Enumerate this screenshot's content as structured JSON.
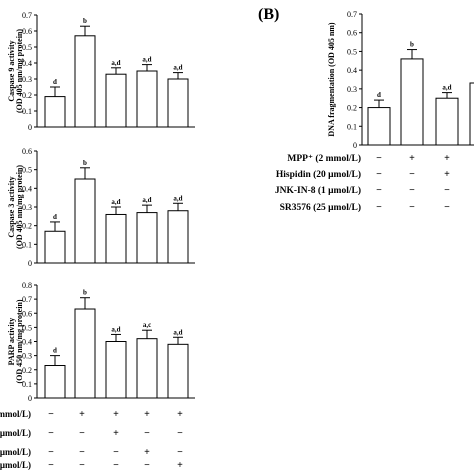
{
  "panel_b_label": "(B)",
  "chart_data": [
    {
      "type": "bar",
      "ylabel": [
        "Caspase 9 activity",
        "(OD 405 nm/mg protein)"
      ],
      "ylim": [
        0,
        0.7
      ],
      "yticks": [
        "0",
        "0.1",
        "0.2",
        "0.3",
        "0.4",
        "0.5",
        "0.6",
        "0.7"
      ],
      "values": [
        0.19,
        0.57,
        0.33,
        0.35,
        0.3
      ],
      "errors": [
        0.06,
        0.06,
        0.04,
        0.04,
        0.04
      ],
      "labels": [
        "d",
        "b",
        "a,d",
        "a,d",
        "a,d"
      ]
    },
    {
      "type": "bar",
      "ylabel": [
        "Caspase 3 activity",
        "(OD 405 nm/mg protein)"
      ],
      "ylim": [
        0,
        0.6
      ],
      "yticks": [
        "0",
        "0.1",
        "0.2",
        "0.3",
        "0.4",
        "0.5",
        "0.6"
      ],
      "values": [
        0.17,
        0.45,
        0.26,
        0.27,
        0.28
      ],
      "errors": [
        0.05,
        0.06,
        0.04,
        0.04,
        0.04
      ],
      "labels": [
        "d",
        "b",
        "a,d",
        "a,d",
        "a,d"
      ]
    },
    {
      "type": "bar",
      "ylabel": [
        "PARP activity",
        "(OD 450 nm/mg protein)"
      ],
      "ylim": [
        0,
        0.8
      ],
      "yticks": [
        "0",
        "0.1",
        "0.2",
        "0.3",
        "0.4",
        "0.5",
        "0.6",
        "0.7",
        "0.8"
      ],
      "values": [
        0.23,
        0.63,
        0.4,
        0.42,
        0.38
      ],
      "errors": [
        0.07,
        0.08,
        0.05,
        0.06,
        0.05
      ],
      "labels": [
        "d",
        "b",
        "a,d",
        "a,c",
        "a,d"
      ]
    },
    {
      "type": "bar",
      "ylabel": [
        "DNA fragmentation (OD 405 nm)"
      ],
      "ylim": [
        0,
        0.7
      ],
      "yticks": [
        "0",
        "0.1",
        "0.2",
        "0.3",
        "0.4",
        "0.5",
        "0.6",
        "0.7"
      ],
      "values": [
        0.2,
        0.46,
        0.25
      ],
      "errors": [
        0.04,
        0.05,
        0.03
      ],
      "labels": [
        "d",
        "b",
        "a,d"
      ]
    }
  ],
  "panel_a_treatments": {
    "row_labels": [
      "mmol/L)",
      "μmol/L)",
      "μmol/L)",
      "μmol/L)"
    ],
    "signs": [
      [
        "−",
        "+",
        "+",
        "+",
        "+"
      ],
      [
        "−",
        "−",
        "+",
        "−",
        "−"
      ],
      [
        "−",
        "−",
        "−",
        "+",
        "−"
      ],
      [
        "−",
        "−",
        "−",
        "−",
        "+"
      ]
    ]
  },
  "panel_b_treatments": {
    "row_labels": [
      "MPP⁺ (2 mmol/L)",
      "Hispidin (20 μmol/L)",
      "JNK-IN-8 (1 μmol/L)",
      "SR3576 (25 μmol/L)"
    ],
    "signs": [
      [
        "−",
        "+",
        "+"
      ],
      [
        "−",
        "−",
        "+"
      ],
      [
        "−",
        "−",
        "−"
      ],
      [
        "−",
        "−",
        "−"
      ]
    ]
  }
}
